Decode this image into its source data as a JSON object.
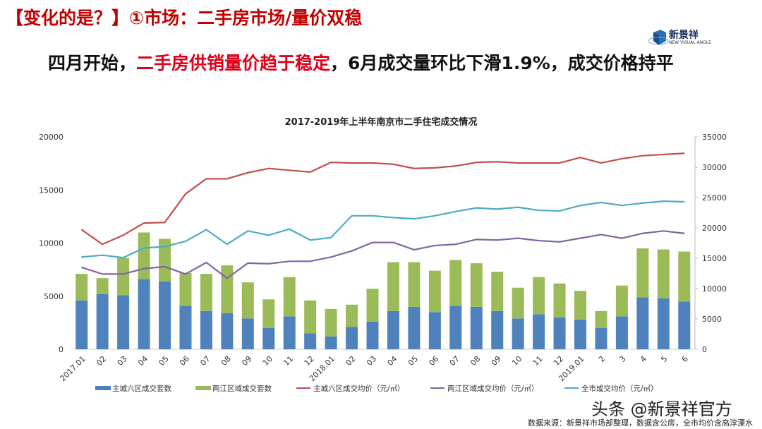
{
  "page": {
    "top_title": "【变化的是？】①市场：二手房市场/量价双稳",
    "headline_pre": "四月开始，",
    "headline_highlight": "二手房供销量价趋于稳定",
    "headline_post": "，6月成交量环比下滑1.9%，成交价格持平",
    "logo_text": "新景祥",
    "logo_sub": "NEW VISUAL ANGLE",
    "watermark": "头条 @新景祥官方",
    "source": "数据来源：新景祥市场部整理，数据含公房，全市均价含高淳溧水"
  },
  "colors": {
    "blue": "#4f81bd",
    "green": "#9bbb59",
    "red": "#c0504d",
    "purple": "#8064a2",
    "cyan": "#4bacc6"
  },
  "chart_data": {
    "type": "bar+line",
    "title": "2017-2019年上半年南京市二手住宅成交情况",
    "categories": [
      "2017.01",
      "02",
      "03",
      "04",
      "05",
      "06",
      "07",
      "08",
      "09",
      "10",
      "11",
      "12",
      "2018.01",
      "02",
      "03",
      "04",
      "05",
      "06",
      "07",
      "08",
      "09",
      "10",
      "11",
      "12",
      "2019.01",
      "2",
      "3",
      "4",
      "5",
      "6"
    ],
    "y_left": {
      "min": 0,
      "max": 20000,
      "ticks": [
        "0",
        "5000",
        "10000",
        "15000",
        "20000"
      ]
    },
    "y_right": {
      "min": 0,
      "max": 35000,
      "ticks": [
        "0",
        "5000",
        "10000",
        "15000",
        "20000",
        "25000",
        "30000",
        "35000"
      ]
    },
    "grid": false,
    "legend_position": "bottom",
    "bar_series": [
      {
        "name": "主城六区成交套数",
        "axis": "left",
        "color": "#4f81bd",
        "values": [
          4600,
          5200,
          5100,
          6600,
          6400,
          4100,
          3600,
          3400,
          2900,
          2000,
          3100,
          1500,
          1200,
          2100,
          2600,
          3600,
          4000,
          3500,
          4100,
          4000,
          3600,
          2900,
          3300,
          3000,
          2800,
          2000,
          3100,
          4900,
          4800,
          4500
        ]
      },
      {
        "name": "两江区域成交套数",
        "axis": "left",
        "color": "#9bbb59",
        "values": [
          2500,
          1500,
          3500,
          4400,
          4000,
          3100,
          3500,
          4500,
          3400,
          2700,
          3700,
          3100,
          2600,
          2100,
          3100,
          4600,
          4200,
          3900,
          4300,
          4100,
          3700,
          2900,
          3500,
          3200,
          2700,
          1600,
          2900,
          4600,
          4600,
          4700
        ]
      }
    ],
    "line_series": [
      {
        "name": "主城六区成交均价（元/㎡）",
        "axis": "right",
        "color": "#c0504d",
        "values": [
          19700,
          17300,
          18800,
          20800,
          20900,
          25600,
          28100,
          28100,
          29100,
          29800,
          29500,
          29200,
          30800,
          30700,
          30700,
          30500,
          29800,
          29900,
          30200,
          30800,
          30900,
          30700,
          30700,
          30700,
          31600,
          30700,
          31400,
          31900,
          32100,
          32300
        ]
      },
      {
        "name": "两江区域成交均价（元/㎡）",
        "axis": "right",
        "color": "#8064a2",
        "values": [
          13500,
          12400,
          12400,
          13300,
          13600,
          12400,
          14300,
          11700,
          14200,
          14100,
          14500,
          14500,
          15200,
          16200,
          17600,
          17600,
          16400,
          17100,
          17300,
          18100,
          18000,
          18300,
          17900,
          17700,
          18300,
          18900,
          18300,
          19100,
          19500,
          19100
        ]
      },
      {
        "name": "全市成交均价（元/㎡）",
        "axis": "right",
        "color": "#4bacc6",
        "values": [
          15200,
          15500,
          15100,
          16700,
          16900,
          17800,
          19700,
          17300,
          19500,
          18800,
          19800,
          18000,
          18400,
          22000,
          22000,
          21700,
          21500,
          22000,
          22700,
          23300,
          23100,
          23400,
          22900,
          22800,
          23700,
          24200,
          23700,
          24100,
          24400,
          24300
        ]
      }
    ]
  }
}
